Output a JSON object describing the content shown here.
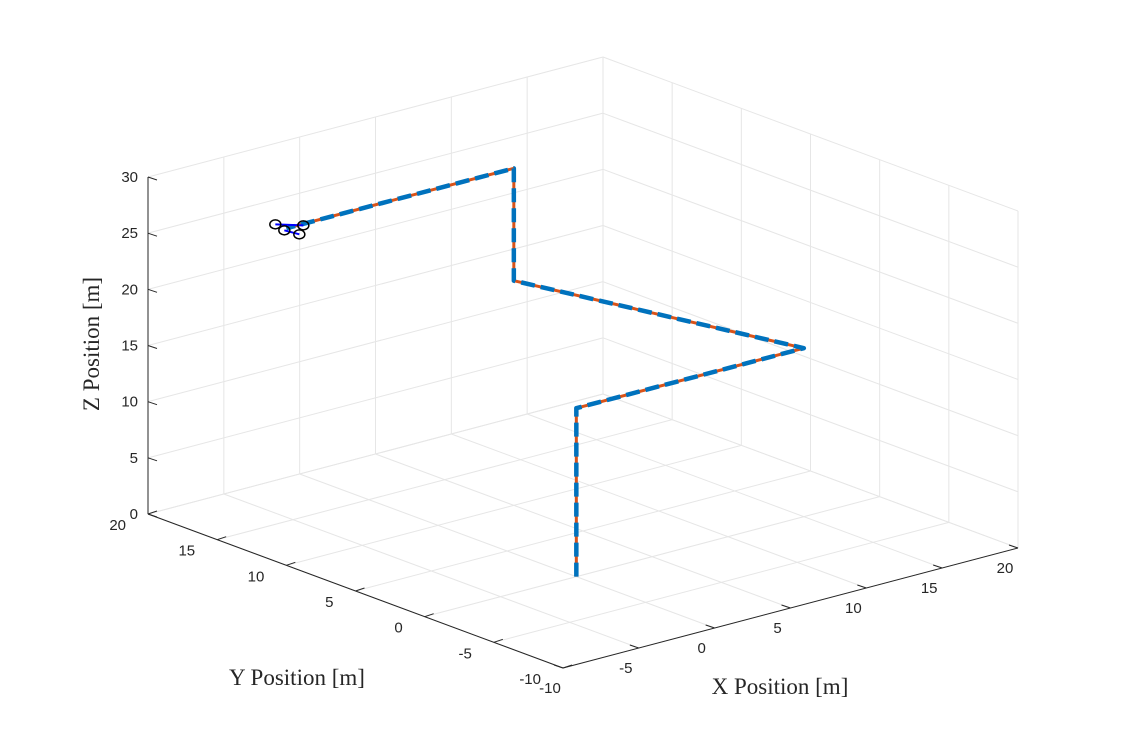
{
  "chart_data": {
    "type": "line3d",
    "title": "",
    "xlabel": "X Position [m]",
    "ylabel": "Y Position [m]",
    "zlabel": "Z Position [m]",
    "xlim": [
      -10,
      20
    ],
    "ylim": [
      -10,
      20
    ],
    "zlim": [
      0,
      30
    ],
    "x_ticks": [
      -10,
      -5,
      0,
      5,
      10,
      15,
      20
    ],
    "y_ticks": [
      -10,
      -5,
      0,
      5,
      10,
      15,
      20
    ],
    "z_ticks": [
      0,
      5,
      10,
      15,
      20,
      25,
      30
    ],
    "grid": true,
    "legend": "none",
    "series": [
      {
        "style": "solid",
        "color": "#D95319",
        "points": [
          {
            "x": 0,
            "y": 0,
            "z": 0
          },
          {
            "x": 0,
            "y": 0,
            "z": 15
          },
          {
            "x": 15,
            "y": 0,
            "z": 15
          },
          {
            "x": 5,
            "y": 10,
            "z": 20
          },
          {
            "x": 5,
            "y": 10,
            "z": 30
          },
          {
            "x": -10,
            "y": 10,
            "z": 30
          }
        ]
      },
      {
        "style": "dashed",
        "color": "#0072BD",
        "points": [
          {
            "x": 0,
            "y": 0,
            "z": 0
          },
          {
            "x": 0,
            "y": 0,
            "z": 15
          },
          {
            "x": 15,
            "y": 0,
            "z": 15
          },
          {
            "x": 5,
            "y": 10,
            "z": 20
          },
          {
            "x": 5,
            "y": 10,
            "z": 30
          },
          {
            "x": -10,
            "y": 10,
            "z": 30
          }
        ]
      }
    ],
    "vehicle": {
      "x": -10,
      "y": 10,
      "z": 30,
      "rotor_color": "#000000",
      "arm_color": "#0000FF"
    }
  }
}
